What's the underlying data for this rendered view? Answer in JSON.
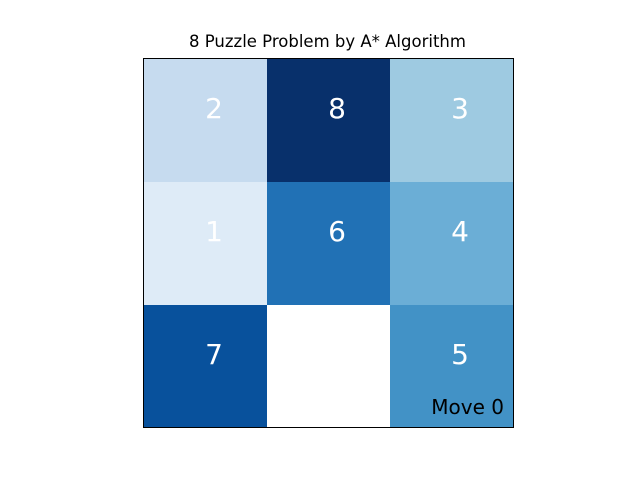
{
  "title": "8 Puzzle Problem by A* Algorithm",
  "move_label": "Move 0",
  "board": {
    "rows": 3,
    "cols": 3,
    "blank_color": "#ffffff",
    "tiles": [
      {
        "label": "2",
        "color": "#c6dbef"
      },
      {
        "label": "8",
        "color": "#08306b"
      },
      {
        "label": "3",
        "color": "#9ecae1"
      },
      {
        "label": "1",
        "color": "#deebf7"
      },
      {
        "label": "6",
        "color": "#2171b5"
      },
      {
        "label": "4",
        "color": "#6baed6"
      },
      {
        "label": "7",
        "color": "#08519c"
      },
      {
        "label": "",
        "color": "#ffffff"
      },
      {
        "label": "5",
        "color": "#4292c6"
      }
    ]
  }
}
